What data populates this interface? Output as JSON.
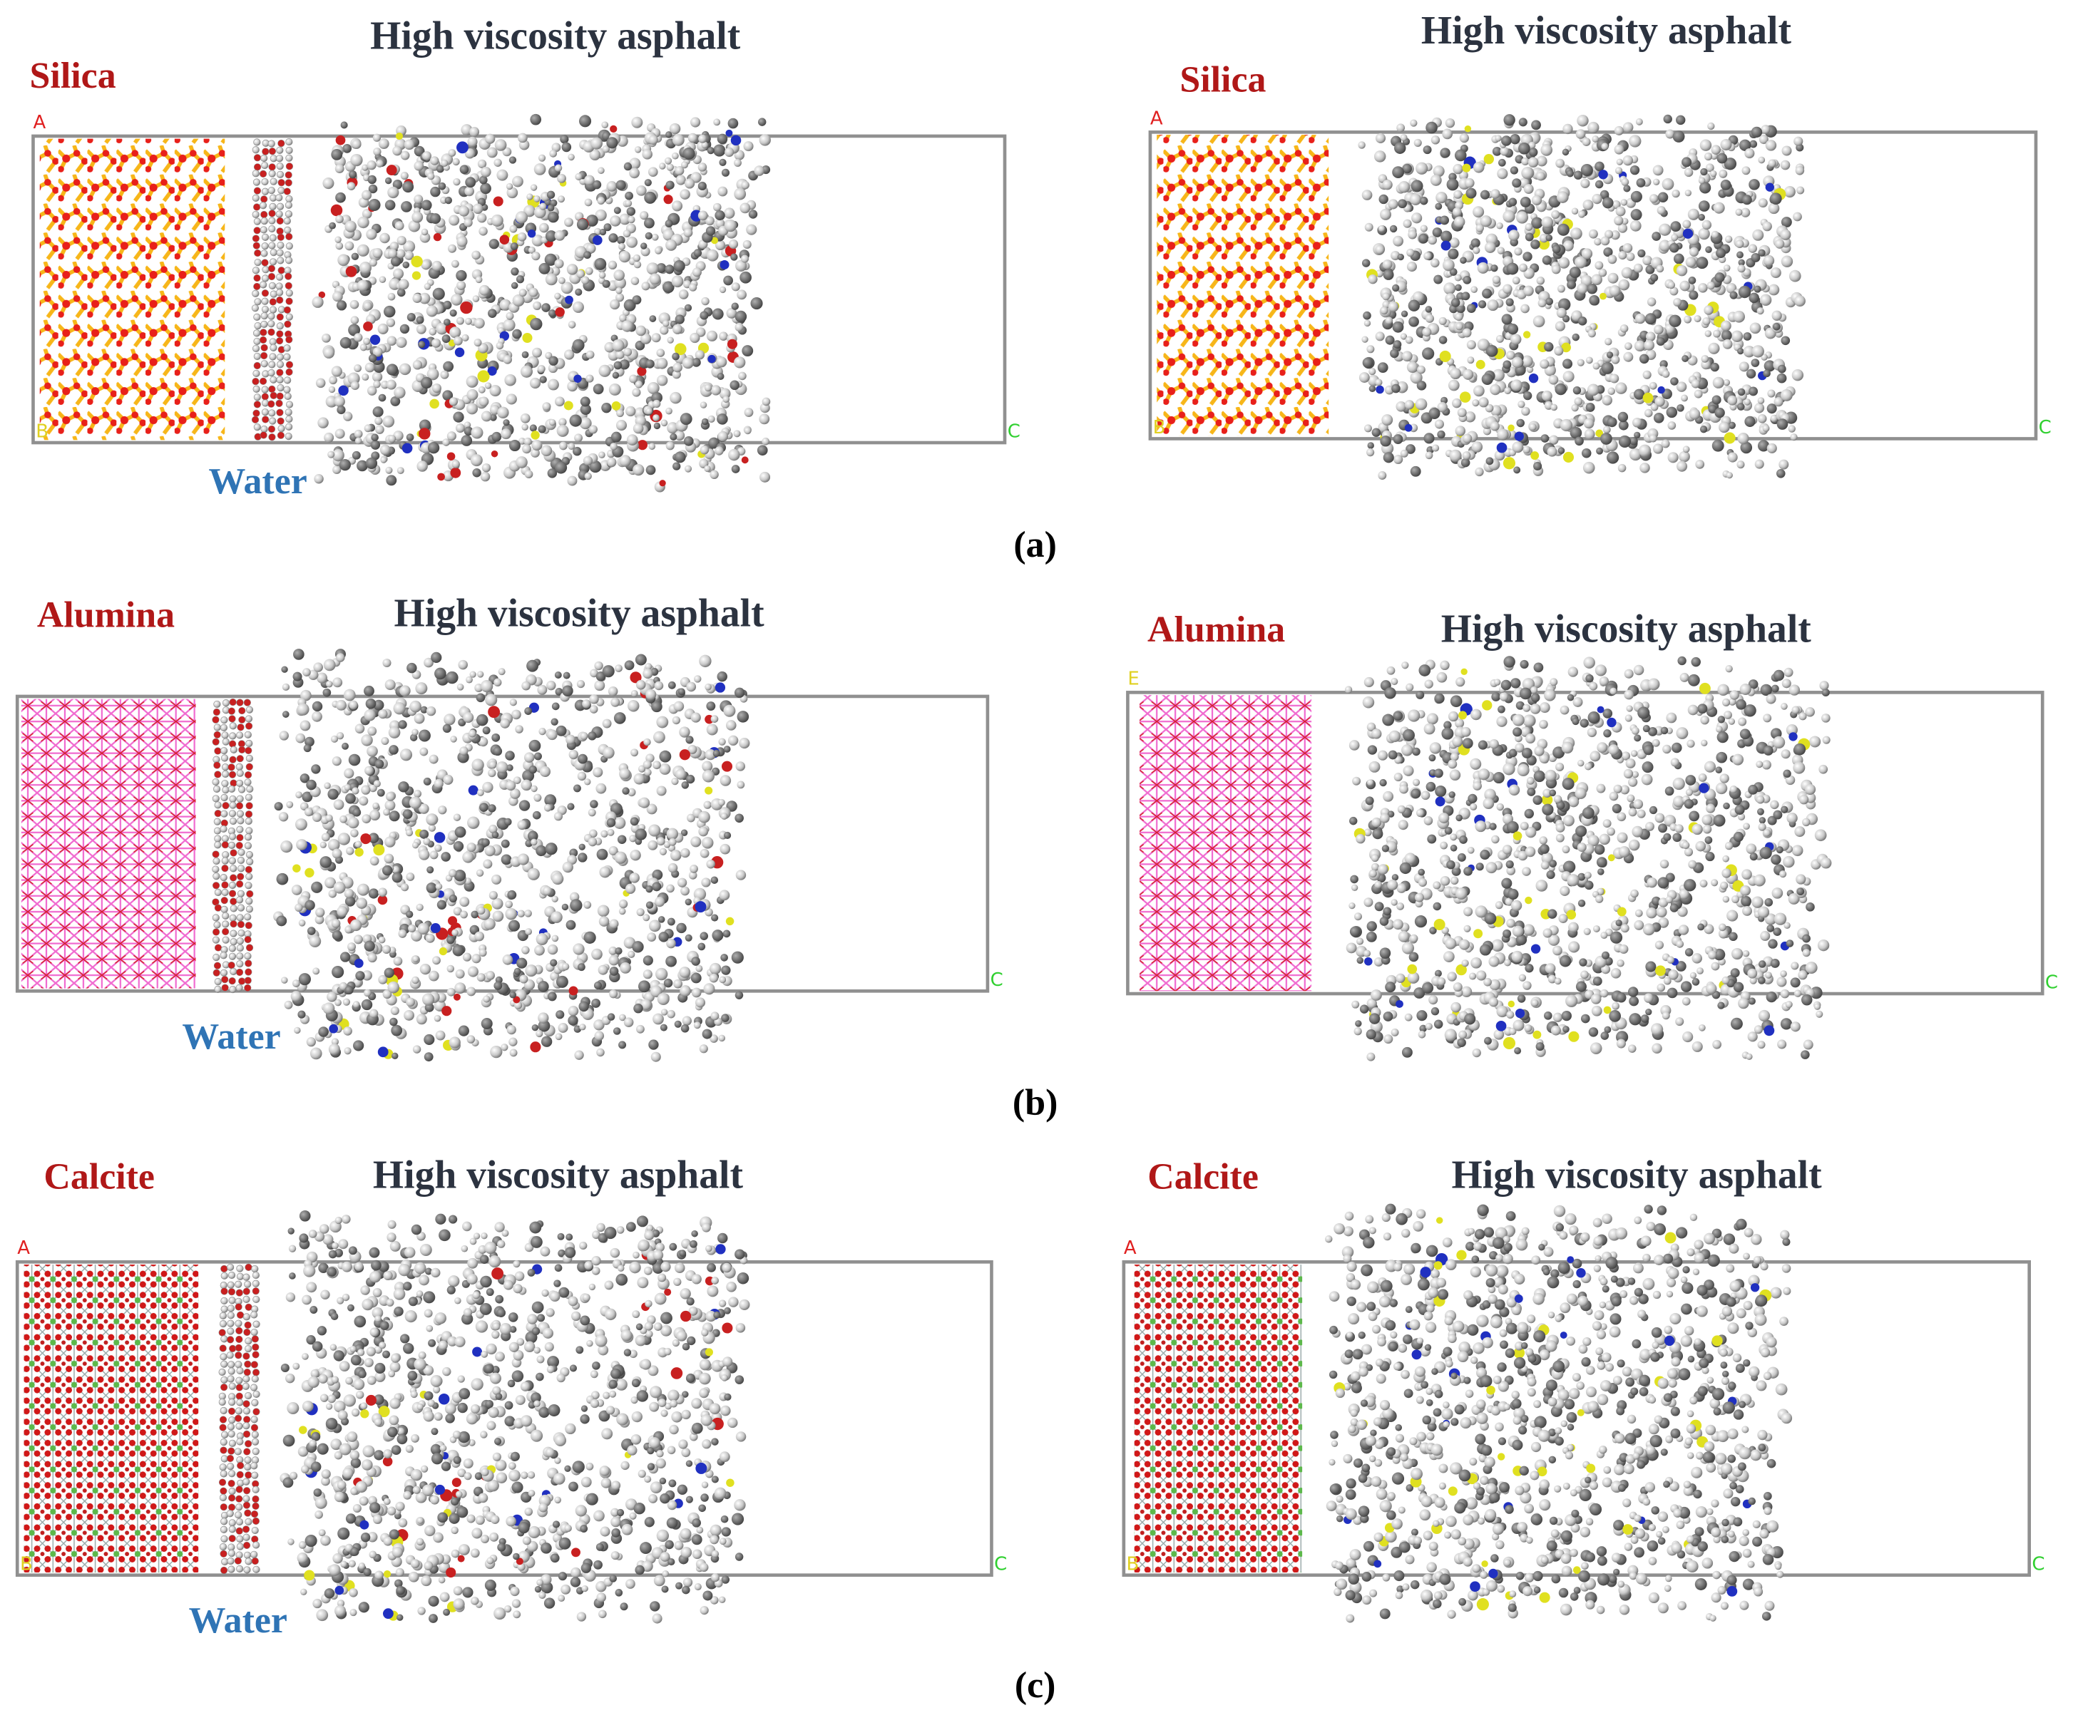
{
  "rows": [
    {
      "caption": "(a)",
      "left": {
        "mineral": "Silica",
        "title": "High viscosity asphalt",
        "water": "Water",
        "corner_labels": [
          "A",
          "B",
          "C"
        ]
      },
      "right": {
        "mineral": "Silica",
        "title": "High viscosity asphalt",
        "corner_labels": [
          "A",
          "B",
          "C"
        ]
      }
    },
    {
      "caption": "(b)",
      "left": {
        "mineral": "Alumina",
        "title": "High viscosity asphalt",
        "water": "Water",
        "corner_labels": [
          "C"
        ]
      },
      "right": {
        "mineral": "Alumina",
        "title": "High viscosity asphalt",
        "corner_labels": [
          "E",
          "C"
        ]
      }
    },
    {
      "caption": "(c)",
      "left": {
        "mineral": "Calcite",
        "title": "High viscosity asphalt",
        "water": "Water",
        "corner_labels": [
          "A",
          "B",
          "C"
        ]
      },
      "right": {
        "mineral": "Calcite",
        "title": "High viscosity asphalt",
        "corner_labels": [
          "A",
          "B",
          "C"
        ]
      }
    }
  ]
}
